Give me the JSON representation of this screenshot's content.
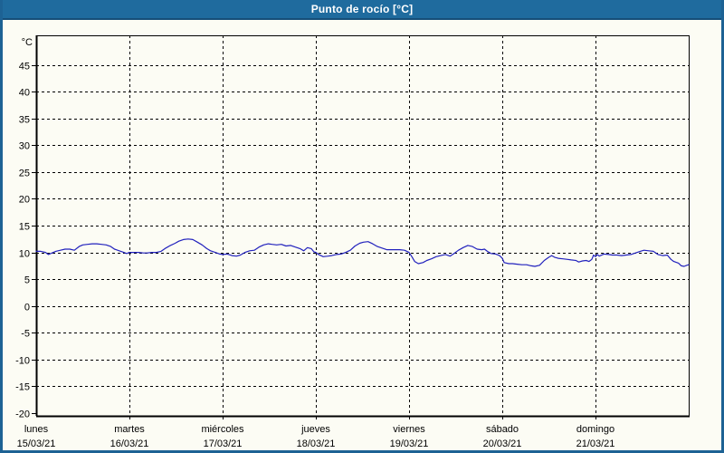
{
  "window": {
    "title": "Punto de rocío [°C]"
  },
  "colors": {
    "frame": "#1d6294",
    "titlebar": "#1f6b9e",
    "titlebar_edge": "#164e78",
    "title_text": "#ffffff",
    "background": "#fcfcf4",
    "axis": "#000000",
    "line": "#2121bd"
  },
  "chart_data": {
    "type": "line",
    "title": "Punto de rocío [°C]",
    "y_unit_label": "°C",
    "ylabel": "",
    "xlabel": "",
    "ylim": [
      -20.5,
      50.5
    ],
    "y_ticks": [
      45,
      40,
      35,
      30,
      25,
      20,
      15,
      10,
      5,
      0,
      -5,
      -10,
      -15,
      -20
    ],
    "grid": "dashed",
    "legend_position": "none",
    "x_range_days": [
      0,
      7
    ],
    "x_days": [
      {
        "name": "lunes",
        "date": "15/03/21"
      },
      {
        "name": "martes",
        "date": "16/03/21"
      },
      {
        "name": "miércoles",
        "date": "17/03/21"
      },
      {
        "name": "jueves",
        "date": "18/03/21"
      },
      {
        "name": "viernes",
        "date": "19/03/21"
      },
      {
        "name": "sábado",
        "date": "20/03/21"
      },
      {
        "name": "domingo",
        "date": "21/03/21"
      }
    ],
    "series": [
      {
        "name": "Punto de rocío",
        "color": "#2121bd",
        "points": [
          [
            0.0,
            10.2
          ],
          [
            0.05,
            10.2
          ],
          [
            0.1,
            10.0
          ],
          [
            0.13,
            9.6
          ],
          [
            0.17,
            9.9
          ],
          [
            0.21,
            10.2
          ],
          [
            0.26,
            10.4
          ],
          [
            0.31,
            10.6
          ],
          [
            0.36,
            10.6
          ],
          [
            0.41,
            10.4
          ],
          [
            0.46,
            11.1
          ],
          [
            0.5,
            11.4
          ],
          [
            0.55,
            11.5
          ],
          [
            0.6,
            11.6
          ],
          [
            0.65,
            11.6
          ],
          [
            0.7,
            11.5
          ],
          [
            0.75,
            11.4
          ],
          [
            0.8,
            11.1
          ],
          [
            0.84,
            10.6
          ],
          [
            0.89,
            10.3
          ],
          [
            0.94,
            10.0
          ],
          [
            0.97,
            9.8
          ],
          [
            1.0,
            10.0
          ],
          [
            1.05,
            10.0
          ],
          [
            1.1,
            10.0
          ],
          [
            1.15,
            9.9
          ],
          [
            1.19,
            9.9
          ],
          [
            1.24,
            10.0
          ],
          [
            1.29,
            10.0
          ],
          [
            1.34,
            10.2
          ],
          [
            1.39,
            10.8
          ],
          [
            1.44,
            11.3
          ],
          [
            1.49,
            11.7
          ],
          [
            1.53,
            12.1
          ],
          [
            1.58,
            12.4
          ],
          [
            1.63,
            12.5
          ],
          [
            1.68,
            12.4
          ],
          [
            1.73,
            11.9
          ],
          [
            1.78,
            11.4
          ],
          [
            1.83,
            10.7
          ],
          [
            1.87,
            10.3
          ],
          [
            1.92,
            10.0
          ],
          [
            1.97,
            9.7
          ],
          [
            2.0,
            9.6
          ],
          [
            2.05,
            9.7
          ],
          [
            2.1,
            9.4
          ],
          [
            2.15,
            9.3
          ],
          [
            2.19,
            9.5
          ],
          [
            2.24,
            10.0
          ],
          [
            2.29,
            10.3
          ],
          [
            2.34,
            10.4
          ],
          [
            2.39,
            11.0
          ],
          [
            2.44,
            11.4
          ],
          [
            2.49,
            11.6
          ],
          [
            2.53,
            11.5
          ],
          [
            2.58,
            11.4
          ],
          [
            2.63,
            11.5
          ],
          [
            2.68,
            11.2
          ],
          [
            2.73,
            11.3
          ],
          [
            2.78,
            11.0
          ],
          [
            2.83,
            10.7
          ],
          [
            2.87,
            10.3
          ],
          [
            2.91,
            10.9
          ],
          [
            2.95,
            10.7
          ],
          [
            2.98,
            10.1
          ],
          [
            3.0,
            10.0
          ],
          [
            3.03,
            9.6
          ],
          [
            3.08,
            9.2
          ],
          [
            3.13,
            9.3
          ],
          [
            3.17,
            9.4
          ],
          [
            3.22,
            9.6
          ],
          [
            3.27,
            9.7
          ],
          [
            3.32,
            10.0
          ],
          [
            3.37,
            10.4
          ],
          [
            3.42,
            11.2
          ],
          [
            3.47,
            11.7
          ],
          [
            3.51,
            11.9
          ],
          [
            3.56,
            12.0
          ],
          [
            3.61,
            11.6
          ],
          [
            3.66,
            11.1
          ],
          [
            3.71,
            10.8
          ],
          [
            3.76,
            10.5
          ],
          [
            3.81,
            10.5
          ],
          [
            3.85,
            10.5
          ],
          [
            3.9,
            10.5
          ],
          [
            3.95,
            10.4
          ],
          [
            4.0,
            10.0
          ],
          [
            4.03,
            9.2
          ],
          [
            4.06,
            8.3
          ],
          [
            4.1,
            7.9
          ],
          [
            4.15,
            8.1
          ],
          [
            4.19,
            8.5
          ],
          [
            4.24,
            8.8
          ],
          [
            4.29,
            9.2
          ],
          [
            4.34,
            9.4
          ],
          [
            4.39,
            9.6
          ],
          [
            4.44,
            9.3
          ],
          [
            4.49,
            9.9
          ],
          [
            4.53,
            10.4
          ],
          [
            4.58,
            10.9
          ],
          [
            4.63,
            11.3
          ],
          [
            4.68,
            11.1
          ],
          [
            4.73,
            10.6
          ],
          [
            4.78,
            10.5
          ],
          [
            4.81,
            10.6
          ],
          [
            4.84,
            10.2
          ],
          [
            4.88,
            9.8
          ],
          [
            4.93,
            9.7
          ],
          [
            4.97,
            9.4
          ],
          [
            5.0,
            8.9
          ],
          [
            5.02,
            8.1
          ],
          [
            5.07,
            7.9
          ],
          [
            5.11,
            7.9
          ],
          [
            5.16,
            7.8
          ],
          [
            5.21,
            7.7
          ],
          [
            5.26,
            7.7
          ],
          [
            5.31,
            7.5
          ],
          [
            5.35,
            7.4
          ],
          [
            5.4,
            7.6
          ],
          [
            5.45,
            8.5
          ],
          [
            5.5,
            9.1
          ],
          [
            5.53,
            9.4
          ],
          [
            5.56,
            9.1
          ],
          [
            5.6,
            8.9
          ],
          [
            5.65,
            8.8
          ],
          [
            5.7,
            8.7
          ],
          [
            5.74,
            8.6
          ],
          [
            5.79,
            8.5
          ],
          [
            5.82,
            8.2
          ],
          [
            5.86,
            8.4
          ],
          [
            5.9,
            8.5
          ],
          [
            5.93,
            8.3
          ],
          [
            5.96,
            8.7
          ],
          [
            5.98,
            9.5
          ],
          [
            6.0,
            9.2
          ],
          [
            6.02,
            9.6
          ],
          [
            6.04,
            9.3
          ],
          [
            6.09,
            9.7
          ],
          [
            6.14,
            9.6
          ],
          [
            6.18,
            9.5
          ],
          [
            6.23,
            9.5
          ],
          [
            6.28,
            9.4
          ],
          [
            6.33,
            9.5
          ],
          [
            6.38,
            9.6
          ],
          [
            6.43,
            9.9
          ],
          [
            6.48,
            10.2
          ],
          [
            6.52,
            10.4
          ],
          [
            6.57,
            10.3
          ],
          [
            6.62,
            10.2
          ],
          [
            6.67,
            9.6
          ],
          [
            6.72,
            9.4
          ],
          [
            6.77,
            9.5
          ],
          [
            6.81,
            8.7
          ],
          [
            6.84,
            8.3
          ],
          [
            6.89,
            8.0
          ],
          [
            6.92,
            7.5
          ],
          [
            6.95,
            7.4
          ],
          [
            6.98,
            7.6
          ],
          [
            7.0,
            7.7
          ]
        ]
      }
    ]
  }
}
